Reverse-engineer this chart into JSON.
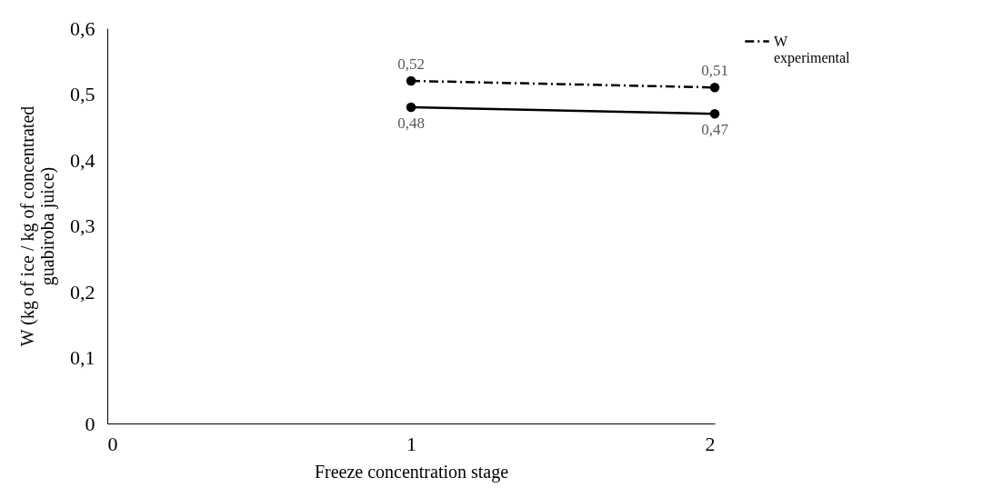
{
  "chart_data": {
    "type": "line",
    "xlabel": "Freeze concentration stage",
    "ylabel": "W (kg of ice / kg of concentrated guabiroba juice)",
    "x": [
      1,
      2
    ],
    "series": [
      {
        "name": "W experimental",
        "color": "#000000",
        "values": [
          0.52,
          0.51
        ],
        "line_style": "dashed",
        "value_labels": [
          "0,52",
          "0,51"
        ]
      },
      {
        "color": "#000000",
        "values": [
          0.48,
          0.47
        ],
        "line_style": "solid",
        "value_labels": [
          "0,48",
          "0,47"
        ]
      }
    ],
    "xlim": [
      0,
      2
    ],
    "xticks": [
      0,
      1,
      2
    ],
    "ylim": [
      0,
      0.6
    ],
    "yticks": [
      0,
      {
        "value": 0.1,
        "label": "0,1"
      },
      {
        "value": 0.2,
        "label": "0,2"
      },
      {
        "value": 0.3,
        "label": "0,3"
      },
      {
        "value": 0.4,
        "label": "0,4"
      },
      {
        "value": 0.5,
        "label": "0,5"
      },
      {
        "value": 0.6,
        "label": "0,6"
      }
    ],
    "marker": "circle",
    "grid": false,
    "legend": "right"
  }
}
